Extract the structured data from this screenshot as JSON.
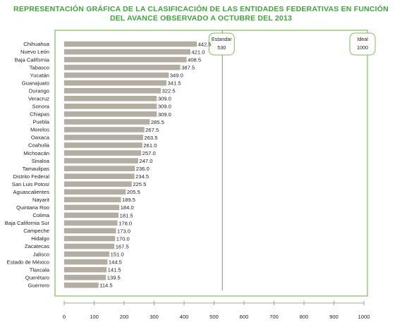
{
  "title_lines": [
    "REPRESENTACIÓN GRÁFICA DE LA CLASIFICACIÓN DE LAS ENTIDADES FEDERATIVAS EN FUNCIÓN",
    "DEL AVANCE OBSERVADO A OCTUBRE DEL 2013"
  ],
  "colors": {
    "title": "#3aa935",
    "bar": "#b4aea2",
    "frame": "#7cbf5a",
    "axis": "#8a8a8a"
  },
  "chart_data": {
    "type": "bar",
    "orientation": "horizontal",
    "title": "REPRESENTACIÓN GRÁFICA DE LA CLASIFICACIÓN DE LAS ENTIDADES FEDERATIVAS EN FUNCIÓN DEL AVANCE OBSERVADO A OCTUBRE DEL 2013",
    "categories": [
      "Chihuahua",
      "Nuevo León",
      "Baja California",
      "Tabasco",
      "Yucatán",
      "Guanajuato",
      "Durango",
      "Veracruz",
      "Sonora",
      "Chiapas",
      "Puebla",
      "Morelos",
      "Oaxaca",
      "Coahuila",
      "Michoacán",
      "Sinaloa",
      "Tamaulipas",
      "Distrito Federal",
      "San Luis Potosí",
      "Aguascalientes",
      "Nayarit",
      "Quintana Roo",
      "Colima",
      "Baja California Sur",
      "Campeche",
      "Hidalgo",
      "Zacatecas",
      "Jalisco",
      "Estado de México",
      "Tlaxcala",
      "Querétaro",
      "Guerrero"
    ],
    "values": [
      442.5,
      421.0,
      408.5,
      387.5,
      349.0,
      341.5,
      322.5,
      309.0,
      309.0,
      309.0,
      285.5,
      267.5,
      263.5,
      261.0,
      257.0,
      247.0,
      236.0,
      234.5,
      225.5,
      205.5,
      189.5,
      184.0,
      181.5,
      178.0,
      173.0,
      170.0,
      167.5,
      151.0,
      144.5,
      141.5,
      139.5,
      114.5
    ],
    "value_labels": [
      "442.5",
      "421.0",
      "408.5",
      "387.5",
      "349.0",
      "341.5",
      "322.5",
      "309.0",
      "309.0",
      "309.0",
      "285.5",
      "267.5",
      "263.5",
      "261.0",
      "257.0",
      "247.0",
      "236.0",
      "234.5",
      "225.5",
      "205.5",
      "189.5",
      "184.0",
      "181.5",
      "178.0",
      "173.0",
      "170.0",
      "167.5",
      "151.0",
      "144.5",
      "141.5",
      "139.5",
      "114.5"
    ],
    "x_ticks": [
      "0",
      "100",
      "200",
      "300",
      "400",
      "500",
      "600",
      "700",
      "800",
      "900",
      "1000"
    ],
    "xlim": [
      0,
      1000
    ],
    "reference_lines": [
      {
        "name": "Estandar",
        "value": 530,
        "label": "530"
      },
      {
        "name": "Ideal",
        "value": 1000,
        "label": "1000"
      }
    ],
    "grid": false
  }
}
